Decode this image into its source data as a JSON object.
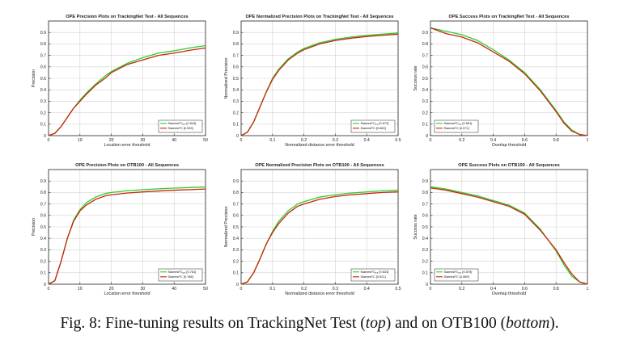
{
  "caption": {
    "prefix": "Fig. 8: Fine-tuning results on TrackingNet Test (",
    "em1": "top",
    "middle": ") and on OTB100 (",
    "em2": "bottom",
    "suffix": ")."
  },
  "colors": {
    "finetuned": "#2ecc2e",
    "base": "#c8250c",
    "axis": "#222222",
    "grid": "#d2d2d2"
  },
  "chart_data": [
    {
      "type": "line",
      "title": "OPE Precision Plots on TrackingNet Test - All Sequences",
      "xlabel": "Location error threshold",
      "ylabel": "Precision",
      "xlim": [
        0,
        50
      ],
      "ylim": [
        0,
        1
      ],
      "xticks": [
        "0",
        "10",
        "20",
        "30",
        "40",
        "50"
      ],
      "yticks": [
        "0",
        "0.1",
        "0.2",
        "0.3",
        "0.4",
        "0.5",
        "0.6",
        "0.7",
        "0.8",
        "0.9"
      ],
      "grid": true,
      "legend_position": "bottom-right",
      "x": [
        0,
        2,
        4,
        6,
        8,
        10,
        12,
        15,
        18,
        20,
        25,
        30,
        35,
        40,
        45,
        50
      ],
      "series": [
        {
          "name": "SiamesFC_FT [0.543]",
          "legend_main": "SiamesFC",
          "legend_sub": "FT",
          "legend_score": "[0.543]",
          "color_key": "finetuned",
          "values": [
            0,
            0.02,
            0.08,
            0.16,
            0.24,
            0.31,
            0.37,
            0.45,
            0.52,
            0.56,
            0.63,
            0.68,
            0.72,
            0.74,
            0.765,
            0.785
          ]
        },
        {
          "name": "SiamesFC [0.533]",
          "legend_main": "SiamesFC",
          "legend_sub": "",
          "legend_score": "[0.533]",
          "color_key": "base",
          "values": [
            0,
            0.02,
            0.08,
            0.16,
            0.24,
            0.3,
            0.36,
            0.44,
            0.5,
            0.55,
            0.62,
            0.66,
            0.7,
            0.72,
            0.745,
            0.765
          ]
        }
      ]
    },
    {
      "type": "line",
      "title": "OPE Normalized Precision Plots on TrackingNet Test - All Sequences",
      "xlabel": "Normalized distance error threshold",
      "ylabel": "Normalized Precision",
      "xlim": [
        0,
        0.5
      ],
      "ylim": [
        0,
        1
      ],
      "xticks": [
        "0",
        "0.1",
        "0.2",
        "0.3",
        "0.4",
        "0.5"
      ],
      "yticks": [
        "0",
        "0.1",
        "0.2",
        "0.3",
        "0.4",
        "0.5",
        "0.6",
        "0.7",
        "0.8",
        "0.9"
      ],
      "grid": true,
      "legend_position": "bottom-right",
      "x": [
        0,
        0.02,
        0.04,
        0.06,
        0.08,
        0.1,
        0.12,
        0.15,
        0.18,
        0.2,
        0.25,
        0.3,
        0.35,
        0.4,
        0.45,
        0.5
      ],
      "series": [
        {
          "name": "SiamesFC_FT [0.673]",
          "legend_main": "SiamesFC",
          "legend_sub": "FT",
          "legend_score": "[0.673]",
          "color_key": "finetuned",
          "values": [
            0,
            0.03,
            0.12,
            0.25,
            0.38,
            0.5,
            0.58,
            0.67,
            0.73,
            0.76,
            0.81,
            0.84,
            0.86,
            0.875,
            0.885,
            0.895
          ]
        },
        {
          "name": "SiamesFC [0.663]",
          "legend_main": "SiamesFC",
          "legend_sub": "",
          "legend_score": "[0.663]",
          "color_key": "base",
          "values": [
            0,
            0.03,
            0.12,
            0.25,
            0.38,
            0.49,
            0.57,
            0.66,
            0.72,
            0.75,
            0.8,
            0.83,
            0.85,
            0.865,
            0.875,
            0.885
          ]
        }
      ]
    },
    {
      "type": "line",
      "title": "OPE Success Plots on TrackingNet Test - All Sequences",
      "xlabel": "Overlap threshold",
      "ylabel": "Success rate",
      "xlim": [
        0,
        1
      ],
      "ylim": [
        0,
        1
      ],
      "xticks": [
        "0",
        "0.2",
        "0.4",
        "0.6",
        "0.8",
        "1"
      ],
      "yticks": [
        "0",
        "0.1",
        "0.2",
        "0.3",
        "0.4",
        "0.5",
        "0.6",
        "0.7",
        "0.8",
        "0.9"
      ],
      "grid": true,
      "legend_position": "bottom-left",
      "x": [
        0,
        0.1,
        0.2,
        0.3,
        0.4,
        0.5,
        0.6,
        0.7,
        0.8,
        0.85,
        0.9,
        0.95,
        1.0
      ],
      "series": [
        {
          "name": "SiamesFC_FT [0.561]",
          "legend_main": "SiamesFC",
          "legend_sub": "FT",
          "legend_score": "[0.561]",
          "color_key": "finetuned",
          "values": [
            0.94,
            0.91,
            0.88,
            0.83,
            0.75,
            0.66,
            0.55,
            0.4,
            0.22,
            0.12,
            0.05,
            0.01,
            0
          ]
        },
        {
          "name": "SiamesFC [0.571]",
          "legend_main": "SiamesFC",
          "legend_sub": "",
          "legend_score": "[0.571]",
          "color_key": "base",
          "values": [
            0.94,
            0.89,
            0.86,
            0.81,
            0.73,
            0.65,
            0.54,
            0.39,
            0.21,
            0.11,
            0.04,
            0.01,
            0
          ]
        }
      ]
    },
    {
      "type": "line",
      "title": "OPE Precision Plots on OTB100 - All Sequences",
      "xlabel": "Location error threshold",
      "ylabel": "Precision",
      "xlim": [
        0,
        50
      ],
      "ylim": [
        0,
        1
      ],
      "xticks": [
        "0",
        "10",
        "20",
        "30",
        "40",
        "50"
      ],
      "yticks": [
        "0",
        "0.1",
        "0.2",
        "0.3",
        "0.4",
        "0.5",
        "0.6",
        "0.7",
        "0.8",
        "0.9"
      ],
      "grid": true,
      "legend_position": "bottom-right",
      "x": [
        0,
        2,
        4,
        6,
        8,
        10,
        12,
        15,
        18,
        20,
        25,
        30,
        35,
        40,
        45,
        50
      ],
      "series": [
        {
          "name": "SiamesFC_FT [0.781]",
          "legend_main": "SiamesFC",
          "legend_sub": "FT",
          "legend_score": "[0.781]",
          "color_key": "finetuned",
          "values": [
            0,
            0.03,
            0.2,
            0.4,
            0.56,
            0.65,
            0.71,
            0.76,
            0.79,
            0.8,
            0.815,
            0.825,
            0.832,
            0.838,
            0.843,
            0.848
          ]
        },
        {
          "name": "SiamesFC [0.768]",
          "legend_main": "SiamesFC",
          "legend_sub": "",
          "legend_score": "[0.768]",
          "color_key": "base",
          "values": [
            0,
            0.03,
            0.2,
            0.4,
            0.55,
            0.64,
            0.69,
            0.74,
            0.77,
            0.78,
            0.795,
            0.805,
            0.813,
            0.82,
            0.825,
            0.83
          ]
        }
      ]
    },
    {
      "type": "line",
      "title": "OPE Normalized Precision Plots on OTB100 - All Sequences",
      "xlabel": "Normalized distance error threshold",
      "ylabel": "Normalized Precision",
      "xlim": [
        0,
        0.5
      ],
      "ylim": [
        0,
        1
      ],
      "xticks": [
        "0",
        "0.1",
        "0.2",
        "0.3",
        "0.4",
        "0.5"
      ],
      "yticks": [
        "0",
        "0.1",
        "0.2",
        "0.3",
        "0.4",
        "0.5",
        "0.6",
        "0.7",
        "0.8",
        "0.9"
      ],
      "grid": true,
      "legend_position": "bottom-right",
      "x": [
        0,
        0.02,
        0.04,
        0.06,
        0.08,
        0.1,
        0.12,
        0.15,
        0.18,
        0.2,
        0.25,
        0.3,
        0.35,
        0.4,
        0.45,
        0.5
      ],
      "series": [
        {
          "name": "SiamesFC_FT [0.633]",
          "legend_main": "SiamesFC",
          "legend_sub": "FT",
          "legend_score": "[0.633]",
          "color_key": "finetuned",
          "values": [
            0,
            0.02,
            0.1,
            0.22,
            0.35,
            0.46,
            0.55,
            0.64,
            0.7,
            0.72,
            0.76,
            0.78,
            0.795,
            0.805,
            0.815,
            0.82
          ]
        },
        {
          "name": "SiamesFC [0.621]",
          "legend_main": "SiamesFC",
          "legend_sub": "",
          "legend_score": "[0.621]",
          "color_key": "base",
          "values": [
            0,
            0.02,
            0.1,
            0.22,
            0.35,
            0.45,
            0.53,
            0.62,
            0.68,
            0.7,
            0.74,
            0.765,
            0.78,
            0.79,
            0.8,
            0.805
          ]
        }
      ]
    },
    {
      "type": "line",
      "title": "OPE Success Plots on OTB100 - All Sequences",
      "xlabel": "Overlap threshold",
      "ylabel": "Success rate",
      "xlim": [
        0,
        1
      ],
      "ylim": [
        0,
        1
      ],
      "xticks": [
        "0",
        "0.2",
        "0.4",
        "0.6",
        "0.8",
        "1"
      ],
      "yticks": [
        "0",
        "0.1",
        "0.2",
        "0.3",
        "0.4",
        "0.5",
        "0.6",
        "0.7",
        "0.8",
        "0.9"
      ],
      "grid": true,
      "legend_position": "bottom-left",
      "x": [
        0,
        0.1,
        0.2,
        0.3,
        0.4,
        0.5,
        0.6,
        0.7,
        0.8,
        0.85,
        0.9,
        0.95,
        1.0
      ],
      "series": [
        {
          "name": "SiamesFC_FT [0.578]",
          "legend_main": "SiamesFC",
          "legend_sub": "FT",
          "legend_score": "[0.578]",
          "color_key": "finetuned",
          "values": [
            0.85,
            0.83,
            0.8,
            0.77,
            0.73,
            0.69,
            0.62,
            0.48,
            0.29,
            0.17,
            0.07,
            0.02,
            0
          ]
        },
        {
          "name": "SiamesFC [0.569]",
          "legend_main": "SiamesFC",
          "legend_sub": "",
          "legend_score": "[0.569]",
          "color_key": "base",
          "values": [
            0.84,
            0.82,
            0.79,
            0.76,
            0.72,
            0.68,
            0.61,
            0.47,
            0.3,
            0.19,
            0.09,
            0.02,
            0
          ]
        }
      ]
    }
  ]
}
